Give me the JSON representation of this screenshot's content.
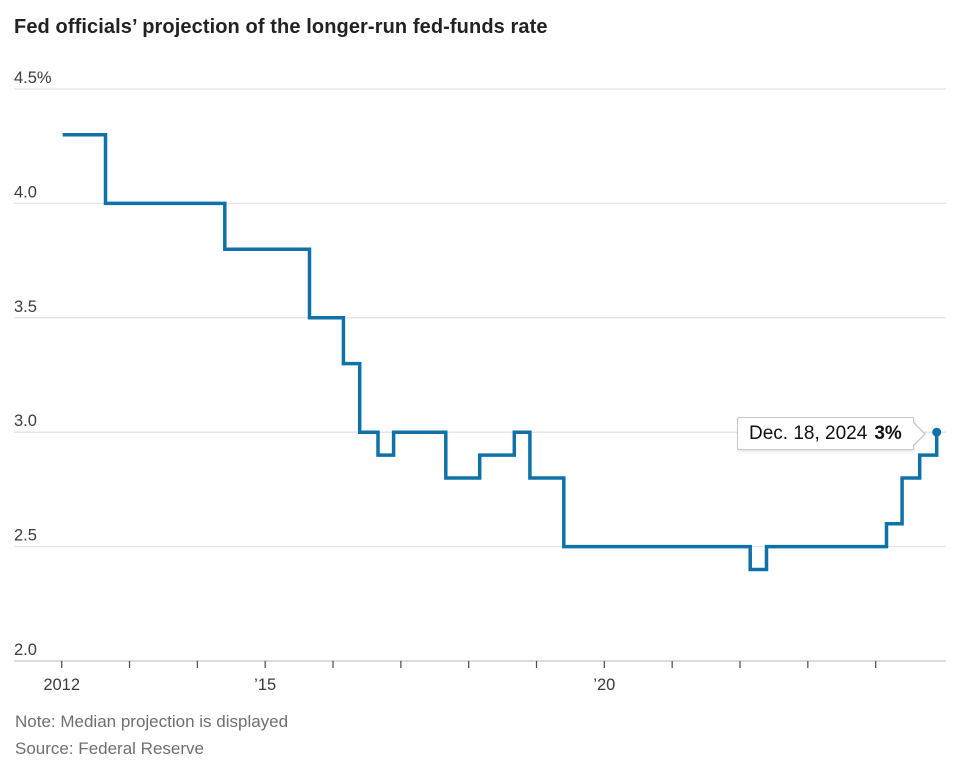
{
  "page": {
    "title": "Fed officials’ projection of the longer-run fed-funds rate",
    "note": "Note: Median projection is displayed",
    "source": "Source: Federal Reserve"
  },
  "tooltip": {
    "date": "Dec. 18, 2024",
    "value": "3%"
  },
  "colors": {
    "line": "#0e72a9",
    "grid": "#e5e5e5",
    "axis": "#c8c8c8",
    "tick": "#4a4a4a",
    "axis_label": "#3c3c3c",
    "title": "#222222",
    "muted": "#6f6f6f",
    "tooltip_border": "#c9c9c9",
    "tooltip_bg": "#ffffff"
  },
  "chart_data": {
    "type": "line",
    "step": "after",
    "title": "Fed officials’ projection of the longer-run fed-funds rate",
    "unit": "%",
    "ylabel": "",
    "xlabel": "",
    "ylim": [
      2.0,
      4.5
    ],
    "xlim_years": [
      2012,
      2025
    ],
    "grid": "horizontal",
    "legend": "none",
    "yticks": [
      {
        "value": 4.5,
        "label": "4.5%"
      },
      {
        "value": 4.0,
        "label": "4.0"
      },
      {
        "value": 3.5,
        "label": "3.5"
      },
      {
        "value": 3.0,
        "label": "3.0"
      },
      {
        "value": 2.5,
        "label": "2.5"
      },
      {
        "value": 2.0,
        "label": "2.0"
      }
    ],
    "xticks_minor_years": [
      2012,
      2013,
      2014,
      2015,
      2016,
      2017,
      2018,
      2019,
      2020,
      2021,
      2022,
      2023,
      2024
    ],
    "xticks_labeled": [
      {
        "year": 2012,
        "label": "2012"
      },
      {
        "year": 2015,
        "label": "’15"
      },
      {
        "year": 2020,
        "label": "’20"
      }
    ],
    "series": [
      {
        "name": "Median projection of the longer-run fed-funds rate",
        "points": [
          {
            "date": "Jan. 2012",
            "t": 2012.07,
            "value": 4.3
          },
          {
            "date": "Sep. 2012",
            "t": 2012.7,
            "value": 4.0
          },
          {
            "date": "Jun. 2014",
            "t": 2014.46,
            "value": 3.8
          },
          {
            "date": "Sep. 2015",
            "t": 2015.71,
            "value": 3.5
          },
          {
            "date": "Mar. 2016",
            "t": 2016.21,
            "value": 3.3
          },
          {
            "date": "Jun. 2016",
            "t": 2016.45,
            "value": 3.0
          },
          {
            "date": "Sep. 2016",
            "t": 2016.72,
            "value": 2.9
          },
          {
            "date": "Dec. 2016",
            "t": 2016.95,
            "value": 3.0
          },
          {
            "date": "Sep. 2017",
            "t": 2017.72,
            "value": 2.8
          },
          {
            "date": "Mar. 2018",
            "t": 2018.22,
            "value": 2.9
          },
          {
            "date": "Sep. 2018",
            "t": 2018.73,
            "value": 3.0
          },
          {
            "date": "Dec. 2018",
            "t": 2018.96,
            "value": 2.8
          },
          {
            "date": "Jun. 2019",
            "t": 2019.46,
            "value": 2.5
          },
          {
            "date": "Mar. 2022",
            "t": 2022.21,
            "value": 2.4
          },
          {
            "date": "Jun. 2022",
            "t": 2022.45,
            "value": 2.5
          },
          {
            "date": "Mar. 2024",
            "t": 2024.22,
            "value": 2.6
          },
          {
            "date": "Jun. 2024",
            "t": 2024.45,
            "value": 2.8
          },
          {
            "date": "Sep. 2024",
            "t": 2024.71,
            "value": 2.9
          },
          {
            "date": "Dec. 18, 2024",
            "t": 2024.96,
            "value": 3.0
          }
        ]
      }
    ],
    "end_marker": {
      "date": "Dec. 18, 2024",
      "value": 3.0,
      "label": "Dec. 18, 2024 3%"
    }
  }
}
